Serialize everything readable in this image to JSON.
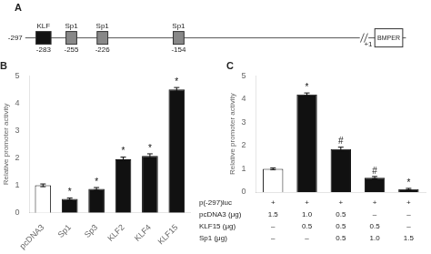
{
  "chart_data": [
    {
      "type": "diagram",
      "title": "A",
      "xlim": [
        -310,
        75
      ],
      "tick_labels": false,
      "grid": false,
      "lines": [
        [
          -300,
          12
        ],
        [
          20,
          55
        ]
      ],
      "boxes": [
        {
          "label": "KLF",
          "pos": "-283",
          "x": -290,
          "width": 14,
          "color": "#111111"
        },
        {
          "label": "Sp1",
          "pos": "-255",
          "x": -262,
          "width": 10,
          "color": "#888888"
        },
        {
          "label": "Sp1",
          "pos": "-226",
          "x": -233,
          "width": 10,
          "color": "#888888"
        },
        {
          "label": "Sp1",
          "pos": "-154",
          "x": -162,
          "width": 10,
          "color": "#888888"
        }
      ],
      "gene": {
        "label": "BMPER",
        "x": 26,
        "width": 26,
        "color": "#ffffff"
      },
      "annotations": [
        {
          "text": "-297",
          "x": -300
        },
        {
          "text": "+1",
          "x": 22
        }
      ]
    },
    {
      "type": "bar",
      "title": "B",
      "categories": [
        "pcDNA3",
        "Sp1",
        "Sp3",
        "KLF2",
        "KLF4",
        "KLF15"
      ],
      "values": [
        1.0,
        0.5,
        0.87,
        1.95,
        2.07,
        4.5
      ],
      "errors": [
        0.05,
        0.04,
        0.05,
        0.08,
        0.08,
        0.07
      ],
      "colors": [
        "#ffffff",
        "#111111",
        "#111111",
        "#111111",
        "#111111",
        "#111111"
      ],
      "annotations": [
        null,
        "*",
        "*",
        "*",
        "*",
        "*"
      ],
      "ylabel": "Relative promoter activity",
      "ylim": [
        0,
        5
      ],
      "yticks": [
        0,
        1,
        2,
        3,
        4,
        5
      ],
      "grid": false
    },
    {
      "type": "bar",
      "title": "C",
      "categories": [
        null,
        null,
        null,
        null,
        null
      ],
      "values": [
        1.0,
        4.2,
        1.85,
        0.62,
        0.13
      ],
      "errors": [
        0.04,
        0.06,
        0.08,
        0.05,
        0.03
      ],
      "colors": [
        "#ffffff",
        "#111111",
        "#111111",
        "#111111",
        "#111111"
      ],
      "annotations": [
        null,
        "*",
        "#",
        "#",
        "*"
      ],
      "ylabel": "Relative promoter activity",
      "ylim": [
        0,
        5
      ],
      "yticks": [
        0,
        1,
        2,
        3,
        4,
        5
      ],
      "grid": false,
      "tick_labels": "y",
      "table": [
        [
          "p(-297)luc",
          "+",
          "+",
          "+",
          "+",
          "+"
        ],
        [
          "pcDNA3 (μg)",
          "1.5",
          "1.0",
          "0.5",
          "–",
          "–"
        ],
        [
          "KLF15 (μg)",
          "–",
          "0.5",
          "0.5",
          "0.5",
          "–"
        ],
        [
          "Sp1 (μg)",
          "–",
          "–",
          "0.5",
          "1.0",
          "1.5"
        ]
      ]
    }
  ]
}
